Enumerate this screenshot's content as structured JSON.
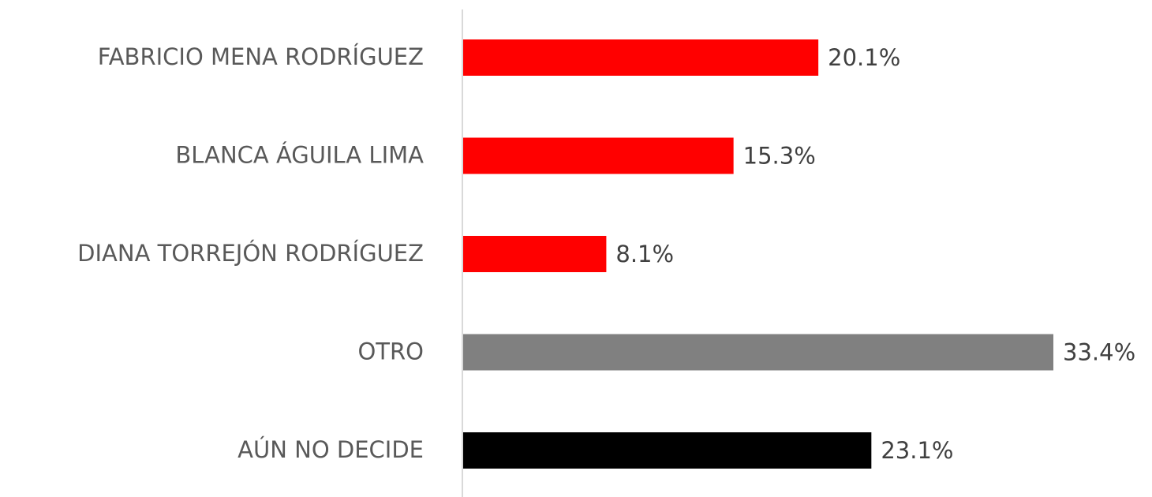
{
  "chart_data": {
    "type": "bar",
    "orientation": "horizontal",
    "categories": [
      "FABRICIO MENA RODRÍGUEZ",
      "BLANCA ÁGUILA LIMA",
      "DIANA TORREJÓN RODRÍGUEZ",
      "OTRO",
      "AÚN NO DECIDE"
    ],
    "values": [
      20.1,
      15.3,
      8.1,
      33.4,
      23.1
    ],
    "value_labels": [
      "20.1%",
      "15.3%",
      "8.1%",
      "33.4%",
      "23.1%"
    ],
    "colors": [
      "#ff0000",
      "#ff0000",
      "#ff0000",
      "#808080",
      "#000000"
    ]
  }
}
